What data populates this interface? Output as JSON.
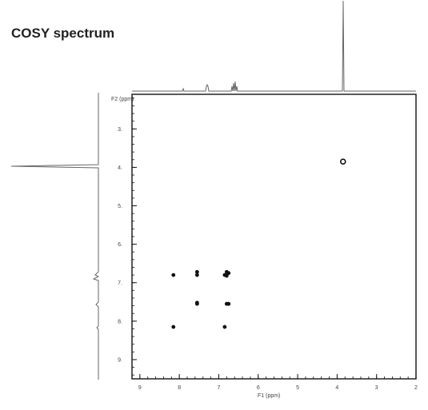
{
  "title": "COSY spectrum",
  "chart_data": {
    "type": "scatter",
    "title": "COSY spectrum",
    "xlabel": "F1 (ppm)",
    "ylabel": "F2 (ppm)",
    "xlim": [
      9.2,
      2
    ],
    "ylim": [
      2.1,
      9.5
    ],
    "grid": false,
    "x_ticks": [
      "9",
      "8",
      "7",
      "6",
      "5",
      "4",
      "3",
      "2"
    ],
    "y_ticks": [
      "3",
      "4",
      "5",
      "6",
      "7",
      "8",
      "9"
    ],
    "series": [
      {
        "x": [
          3.85,
          8.15,
          7.55,
          7.55,
          6.8,
          6.8,
          6.75,
          7.55,
          7.55,
          6.85,
          6.8,
          6.75,
          8.15,
          6.85
        ],
        "y": [
          3.85,
          6.8,
          6.72,
          6.8,
          6.72,
          6.82,
          6.75,
          7.52,
          7.55,
          6.8,
          7.55,
          7.55,
          8.15,
          8.15
        ]
      }
    ],
    "colors": {
      "ink": "#111111",
      "frame": "#222222"
    }
  }
}
